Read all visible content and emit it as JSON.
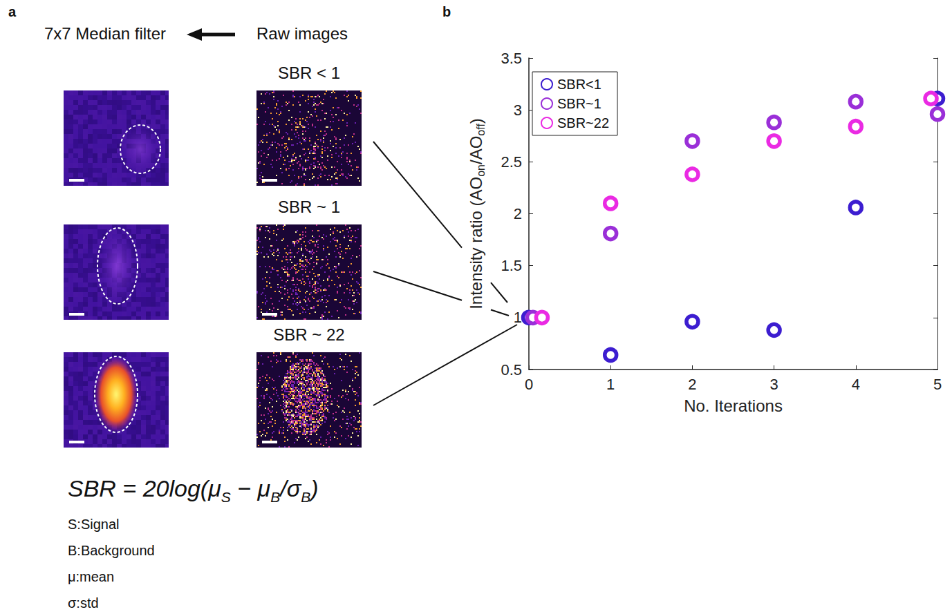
{
  "panel_a": {
    "letter": "a",
    "left_title": "7x7 Median filter",
    "right_title": "Raw images",
    "rows": [
      "SBR < 1",
      "SBR ~ 1",
      "SBR ~ 22"
    ],
    "formula": [
      "SBR = 20log(μ",
      {
        "sub": "S"
      },
      " − μ",
      {
        "sub": "B"
      },
      "/σ",
      {
        "sub": "B"
      },
      ")"
    ],
    "definitions": [
      "S:Signal",
      "B:Background",
      "μ:mean",
      "σ:std"
    ]
  },
  "panel_b": {
    "letter": "b"
  },
  "chart_data": {
    "type": "scatter",
    "xlabel": "No. Iterations",
    "ylabel": [
      "Intensity ratio (AO",
      {
        "sub": "on"
      },
      "/AO",
      {
        "sub": "off"
      },
      ")"
    ],
    "xlim": [
      0,
      5
    ],
    "xticks": [
      0,
      1,
      2,
      3,
      4,
      5
    ],
    "ylim": [
      0.5,
      3.5
    ],
    "yticks": [
      0.5,
      1,
      1.5,
      2,
      2.5,
      3,
      3.5
    ],
    "legend": "upper left",
    "grid": false,
    "marker": "circle",
    "series": [
      {
        "name": "SBR<1",
        "color": "#3c1dd0",
        "x": [
          0,
          1,
          2,
          3,
          4,
          5
        ],
        "values": [
          1.0,
          0.64,
          0.96,
          0.88,
          2.06,
          3.11
        ]
      },
      {
        "name": "SBR~1",
        "color": "#9a2fd8",
        "x": [
          0.05,
          1,
          2,
          3,
          4,
          5
        ],
        "values": [
          1.0,
          1.81,
          2.7,
          2.88,
          3.08,
          2.96
        ]
      },
      {
        "name": "SBR~22",
        "color": "#ea2ae3",
        "x": [
          0.16,
          1,
          2,
          3,
          4,
          4.92
        ],
        "values": [
          1.0,
          2.1,
          2.38,
          2.7,
          2.84,
          3.11
        ]
      }
    ]
  }
}
